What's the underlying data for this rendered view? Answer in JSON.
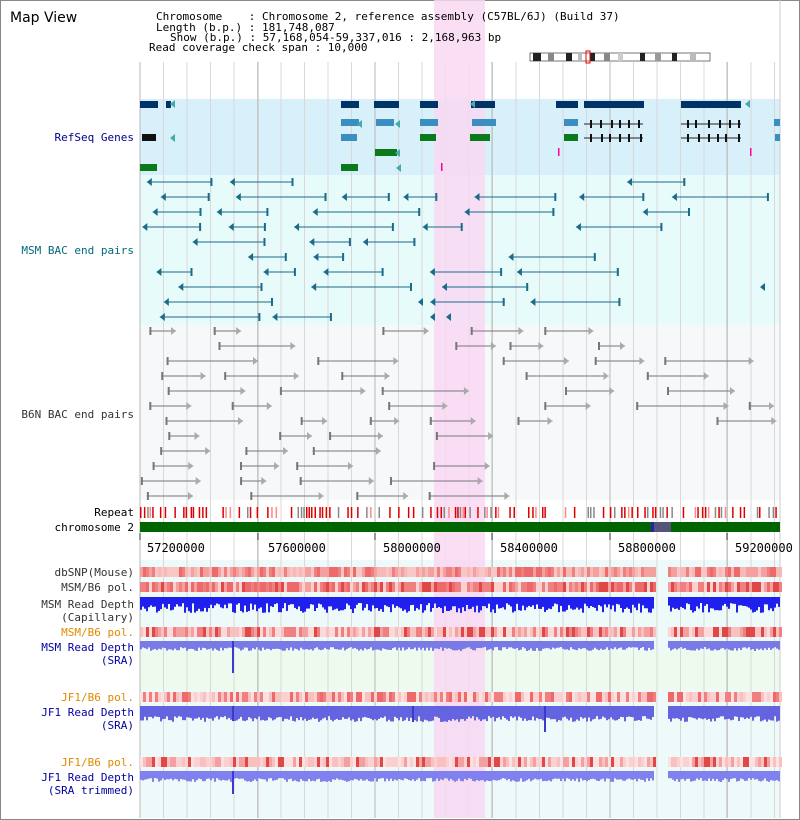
{
  "header": {
    "title": "Map View",
    "chromosome_line": "Chromosome    : Chromosome 2, reference assembly (C57BL/6J) (Build 37)",
    "length_line": "Length (b.p.) : 181,748,087",
    "show_line": "Show (b.p.) : 57,168,054-59,337,016 : 2,168,963 bp",
    "span_line": "Read coverage check span : 10,000"
  },
  "tracks": {
    "refseq": "RefSeq Genes",
    "msm_bac": "MSM BAC end pairs",
    "b6n_bac": "B6N BAC end pairs",
    "repeat": "Repeat",
    "chromosome": "chromosome 2",
    "dbsnp": "dbSNP(Mouse)",
    "msm_pol": "MSM/B6 pol.",
    "msm_depth_cap_1": "MSM Read Depth",
    "msm_depth_cap_2": "(Capillary)",
    "msm_pol2": "MSM/B6 pol.",
    "msm_depth_sra_1": "MSM Read Depth",
    "msm_depth_sra_2": "(SRA)",
    "jf1_pol": "JF1/B6 pol.",
    "jf1_depth_1": "JF1 Read Depth",
    "jf1_depth_2": "(SRA)",
    "jf1_pol2": "JF1/B6 pol.",
    "jf1_trim_1": "JF1 Read Depth",
    "jf1_trim_2": "(SRA trimmed)"
  },
  "axis": {
    "ticks": [
      "57200000",
      "57600000",
      "58000000",
      "58400000",
      "58800000",
      "59200000"
    ]
  },
  "colors": {
    "refseq_bg": "#d8f0fa",
    "bac_bg": "#e8fbfb",
    "highlight": "#f8d8f2",
    "gene_dark": "#003366",
    "gene_mid": "#3a8fc0",
    "gene_green": "#0a7a1a",
    "bac_line": "#1a6a8a",
    "b6n_line": "#777777",
    "chrom_bar": "#006400",
    "depth_blue": "#2020ee",
    "depth_light": "#8080ee"
  }
}
